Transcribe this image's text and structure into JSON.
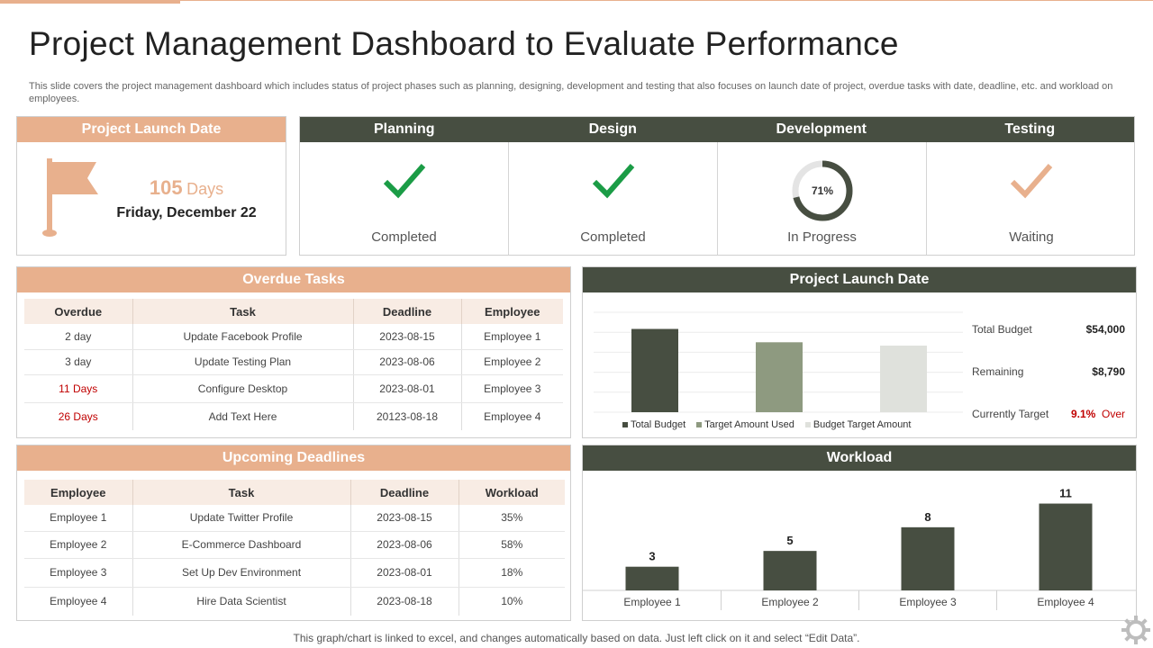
{
  "page": {
    "title": "Project Management Dashboard to Evaluate Performance",
    "subtitle": "This slide covers the project management dashboard which includes status of project phases such as planning, designing, development and testing that also focuses on launch date of project, overdue tasks with date, deadline, etc. and workload on employees.",
    "footer": "This graph/chart is linked to excel,  and changes automatically based on data. Just left click on it and select “Edit Data”."
  },
  "launch_card": {
    "header": "Project Launch Date",
    "days_number": "105",
    "days_unit": "Days",
    "date": "Friday, December 22",
    "icon": "flag-icon"
  },
  "phases": [
    {
      "label": "Planning",
      "status": "Completed",
      "icon": "check-icon"
    },
    {
      "label": "Design",
      "status": "Completed",
      "icon": "check-icon"
    },
    {
      "label": "Development",
      "status": "In Progress",
      "icon": "progress-ring-icon",
      "percent_text": "71%",
      "progress": 0.71
    },
    {
      "label": "Testing",
      "status": "Waiting",
      "icon": "check-icon"
    }
  ],
  "overdue": {
    "header": "Overdue Tasks",
    "columns": [
      "Overdue",
      "Task",
      "Deadline",
      "Employee"
    ],
    "rows": [
      {
        "overdue": "2 day",
        "task": "Update Facebook Profile",
        "deadline": "2023-08-15",
        "employee": "Employee 1"
      },
      {
        "overdue": "3 day",
        "task": "Update Testing Plan",
        "deadline": "2023-08-06",
        "employee": "Employee 2"
      },
      {
        "overdue": "11 Days",
        "task": "Configure Desktop",
        "deadline": "2023-08-01",
        "employee": "Employee 3"
      },
      {
        "overdue": "26 Days",
        "task": "Add Text Here",
        "deadline": "20123-08-18",
        "employee": "Employee 4"
      }
    ]
  },
  "upcoming": {
    "header": "Upcoming Deadlines",
    "columns": [
      "Employee",
      "Task",
      "Deadline",
      "Workload"
    ],
    "rows": [
      {
        "employee": "Employee 1",
        "task": "Update  Twitter Profile",
        "deadline": "2023-08-15",
        "workload": "35%"
      },
      {
        "employee": "Employee 2",
        "task": "E-Commerce Dashboard",
        "deadline": "2023-08-06",
        "workload": "58%"
      },
      {
        "employee": "Employee 3",
        "task": "Set Up Dev Environment",
        "deadline": "2023-08-01",
        "workload": "18%"
      },
      {
        "employee": "Employee 4",
        "task": "Hire Data Scientist",
        "deadline": "2023-08-18",
        "workload": "10%"
      }
    ]
  },
  "budget": {
    "header": "Project Launch Date",
    "rows": [
      {
        "label": "Total Budget",
        "value": "$54,000"
      },
      {
        "label": "Remaining",
        "value": "$8,790"
      },
      {
        "label": "Currently Target",
        "value_pct": "9.1%",
        "value_word": "Over"
      }
    ]
  },
  "workload_header": "Workload",
  "colors": {
    "peach": "#e8b08d",
    "dark": "#474e41",
    "check_green": "#1b9c46",
    "red": "#c00000"
  },
  "chart_data": [
    {
      "type": "bar",
      "categories": [
        "Total Budget",
        "Target Amount Used",
        "Budget Target Amount"
      ],
      "series": [
        {
          "values": [
            100,
            84,
            80
          ]
        }
      ],
      "colors": [
        "#474e41",
        "#8e9a80",
        "#dfe1dc"
      ],
      "legend": [
        "Total Budget",
        "Target Amount Used",
        "Budget Target Amount"
      ],
      "legend_position": "bottom",
      "ylim": [
        0,
        120
      ],
      "grid": true
    },
    {
      "type": "bar",
      "categories": [
        "Employee 1",
        "Employee 2",
        "Employee 3",
        "Employee 4"
      ],
      "values": [
        3,
        5,
        8,
        11
      ],
      "data_labels": [
        "3",
        "5",
        "8",
        "11"
      ],
      "ylim": [
        0,
        13
      ]
    }
  ]
}
